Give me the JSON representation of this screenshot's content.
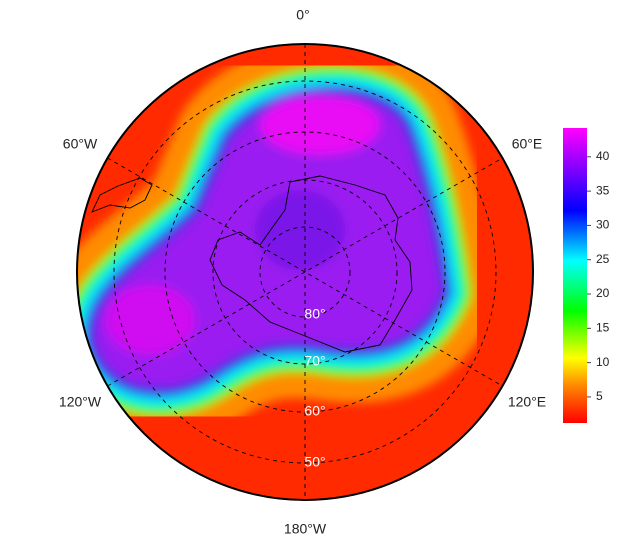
{
  "map": {
    "longitude_labels": [
      "0°",
      "60°E",
      "120°E",
      "180°W",
      "120°W",
      "60°W"
    ],
    "latitude_labels": [
      "80°",
      "70°",
      "60°",
      "50°"
    ],
    "colorbar": {
      "lim": [
        1.2,
        44.2
      ],
      "ticks": [
        5,
        10,
        15,
        20,
        25,
        30,
        35,
        40
      ]
    }
  }
}
